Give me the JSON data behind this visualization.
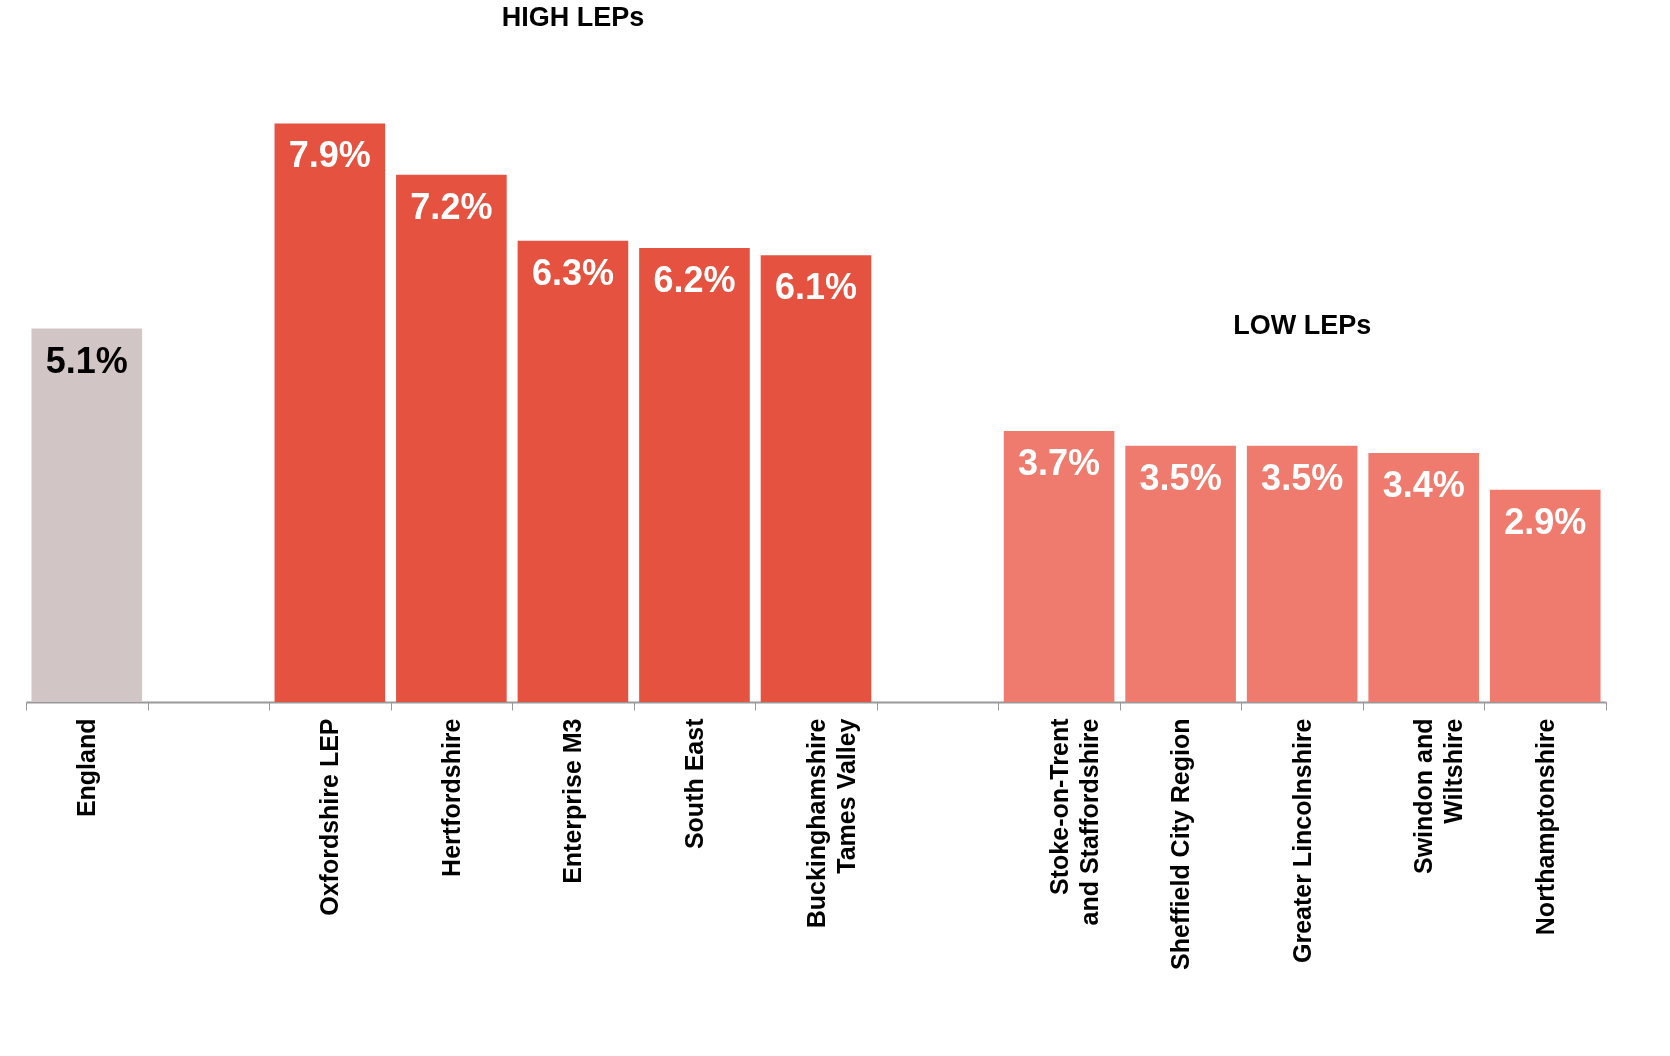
{
  "chart_data": {
    "type": "bar",
    "categories": [
      "England",
      null,
      "Oxfordshire LEP",
      "Hertfordshire",
      "Enterprise M3",
      "South East",
      "Buckinghamshire\nTames Valley",
      null,
      "Stoke-on-Trent\nand Staffordshire",
      "Sheffield City Region",
      "Greater Lincolnshire",
      "Swindon and\nWiltshire",
      "Northamptonshire"
    ],
    "values": [
      5.1,
      null,
      7.9,
      7.2,
      6.3,
      6.2,
      6.1,
      null,
      3.7,
      3.5,
      3.5,
      3.4,
      2.9
    ],
    "colors": [
      "#d1c5c5",
      null,
      "#e55240",
      "#e55240",
      "#e55240",
      "#e55240",
      "#e55240",
      null,
      "#ee7b6e",
      "#ee7b6e",
      "#ee7b6e",
      "#ee7b6e",
      "#ee7b6e"
    ],
    "value_labels": [
      "5.1%",
      null,
      "7.9%",
      "7.2%",
      "6.3%",
      "6.2%",
      "6.1%",
      null,
      "3.7%",
      "3.5%",
      "3.5%",
      "3.4%",
      "2.9%"
    ],
    "annotations": [
      "HIGH LEPs",
      "LOW LEPs"
    ],
    "grid": false
  }
}
